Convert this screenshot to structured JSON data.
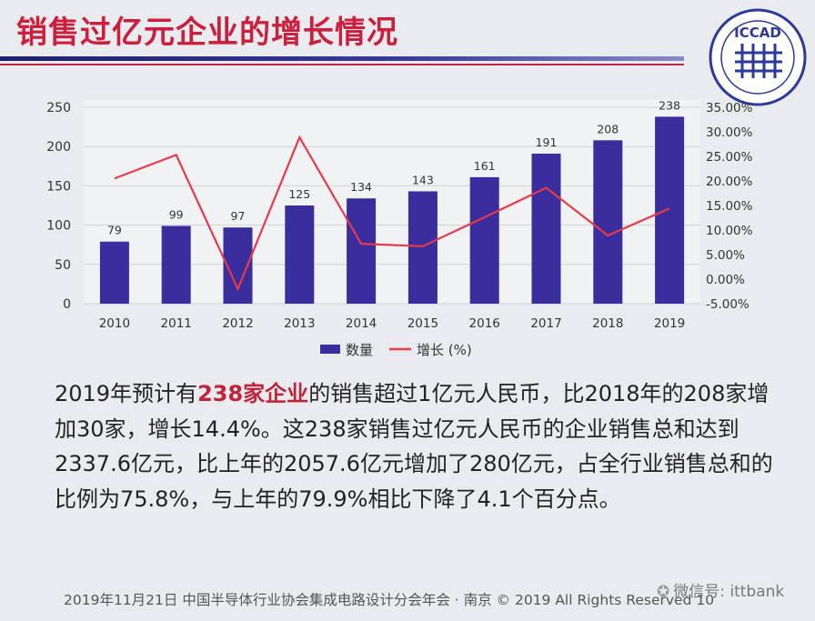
{
  "slide": {
    "title": "销售过亿元企业的增长情况",
    "logo_text": "ICCAD"
  },
  "chart_data": {
    "type": "bar",
    "categories": [
      "2010",
      "2011",
      "2012",
      "2013",
      "2014",
      "2015",
      "2016",
      "2017",
      "2018",
      "2019"
    ],
    "series": [
      {
        "name": "数量",
        "type": "bar",
        "values": [
          79,
          99,
          97,
          125,
          134,
          143,
          161,
          191,
          208,
          238
        ],
        "color": "#3a2d9e"
      },
      {
        "name": "增长 (%)",
        "type": "line",
        "axis": "right",
        "values": [
          20.5,
          25.3,
          -2.0,
          28.9,
          7.2,
          6.7,
          12.6,
          18.6,
          8.9,
          14.4
        ],
        "color": "#e8394b"
      }
    ],
    "ylim_left": [
      0,
      250
    ],
    "yticks_left": [
      "0",
      "50",
      "100",
      "150",
      "200",
      "250"
    ],
    "ylim_right": [
      -5,
      35
    ],
    "yticks_right": [
      "-5.00%",
      "0.00%",
      "5.00%",
      "10.00%",
      "15.00%",
      "20.00%",
      "25.00%",
      "30.00%",
      "35.00%"
    ],
    "data_labels": [
      "79",
      "99",
      "97",
      "125",
      "134",
      "143",
      "161",
      "191",
      "208",
      "238"
    ],
    "legend": [
      {
        "label": "数量",
        "type": "bar",
        "color": "#3a2d9e"
      },
      {
        "label": "增长 (%)",
        "type": "line",
        "color": "#e8394b"
      }
    ],
    "grid": true,
    "legend_position": "bottom-center"
  },
  "body": {
    "segments": [
      "2019年预计有",
      "238家企业",
      "的销售超过1亿元人民币，比2018年的208家增加30家，增长14.4%。这238家销售过亿元人民币的企业销售总和达到2337.6亿元，比上年的2057.6亿元增加了280亿元，占全行业销售总和的比例为75.8%，与上年的79.9%相比下降了4.1个百分点。"
    ]
  },
  "footer": {
    "text": "2019年11月21日  中国半导体行业协会集成电路设计分会年会 · 南京 © 2019 All Rights Reserved   10"
  },
  "watermark": {
    "text": "微信号: ittbank"
  }
}
